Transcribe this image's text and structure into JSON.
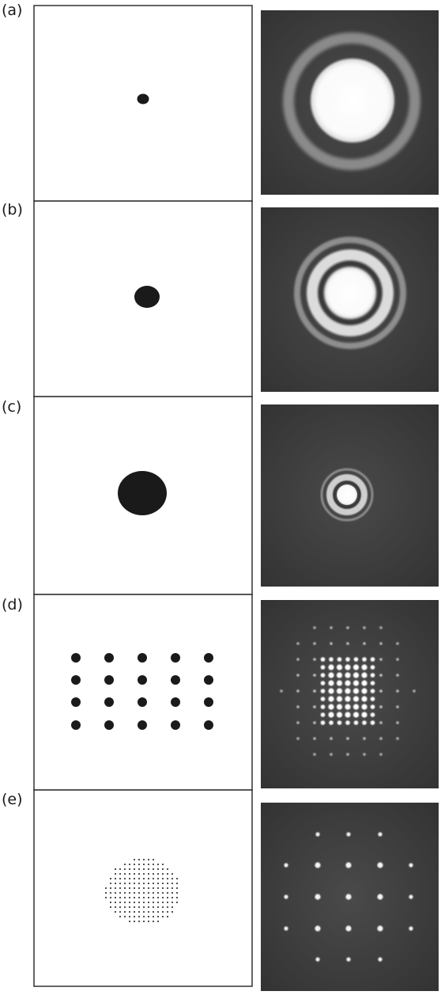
{
  "rows": [
    {
      "label": "(a)"
    },
    {
      "label": "(b)"
    },
    {
      "label": "(c)"
    },
    {
      "label": "(d)"
    },
    {
      "label": "(e)"
    }
  ],
  "colors": {
    "frame": "#222222",
    "mask_ink": "#1a1a1a",
    "pattern_background": "#3c3c3c",
    "bright": "#f4f4f4"
  }
}
